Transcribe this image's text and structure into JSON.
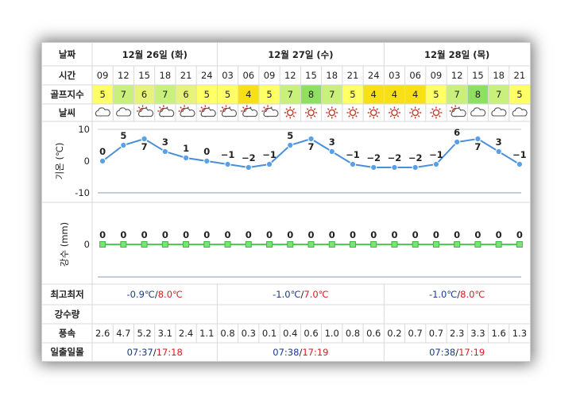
{
  "row_labels": {
    "date": "날짜",
    "time": "시간",
    "golf": "골프지수",
    "weather": "날씨",
    "temp_axis": "기온 (℃)",
    "precip_axis": "강수 (mm)",
    "minmax": "최고최저",
    "precip": "강수량",
    "wind": "풍속",
    "sun": "일출일몰"
  },
  "days": [
    {
      "label": "12월 26일 (화)",
      "min": "-0.9℃",
      "max": "8.0℃",
      "sunrise": "07:37",
      "sunset": "17:18"
    },
    {
      "label": "12월 27일 (수)",
      "min": "-1.0℃",
      "max": "7.0℃",
      "sunrise": "07:38",
      "sunset": "17:19"
    },
    {
      "label": "12월 28일 (목)",
      "min": "-1.0℃",
      "max": "8.0℃",
      "sunrise": "07:38",
      "sunset": "17:19"
    }
  ],
  "day_spans": [
    6,
    8,
    7
  ],
  "colors": {
    "golf_scale": {
      "4": "#f7e017",
      "5": "#ffff66",
      "6": "#e6f27a",
      "7": "#c8f07a",
      "8": "#8fe060"
    },
    "temp_line": "#4a90d9",
    "precip_line": "#4cd04c",
    "min_color": "#1a3a8a",
    "max_color": "#d42020"
  },
  "chart_data": [
    {
      "type": "line",
      "name": "temperature",
      "x": [
        "09",
        "12",
        "15",
        "18",
        "21",
        "24",
        "03",
        "06",
        "09",
        "12",
        "15",
        "18",
        "21",
        "24",
        "03",
        "06",
        "09",
        "12",
        "15",
        "18",
        "21"
      ],
      "values": [
        0,
        5,
        7,
        3,
        1,
        0,
        -1,
        -2,
        -1,
        5,
        7,
        3,
        -1,
        -2,
        -2,
        -2,
        -1,
        6,
        7,
        3,
        -1
      ],
      "ylabel": "기온 (℃)",
      "yticks": [
        10,
        0,
        -10
      ],
      "ylim": [
        -10,
        10
      ],
      "grid": false
    },
    {
      "type": "line",
      "name": "precipitation",
      "x": [
        "09",
        "12",
        "15",
        "18",
        "21",
        "24",
        "03",
        "06",
        "09",
        "12",
        "15",
        "18",
        "21",
        "24",
        "03",
        "06",
        "09",
        "12",
        "15",
        "18",
        "21"
      ],
      "values": [
        0,
        0,
        0,
        0,
        0,
        0,
        0,
        0,
        0,
        0,
        0,
        0,
        0,
        0,
        0,
        0,
        0,
        0,
        0,
        0,
        0
      ],
      "ylabel": "강수 (mm)",
      "yticks": [
        0
      ]
    }
  ],
  "hours": [
    "09",
    "12",
    "15",
    "18",
    "21",
    "24",
    "03",
    "06",
    "09",
    "12",
    "15",
    "18",
    "21",
    "24",
    "03",
    "06",
    "09",
    "12",
    "15",
    "18",
    "21"
  ],
  "golf": [
    "5",
    "7",
    "6",
    "7",
    "6",
    "5",
    "5",
    "4",
    "5",
    "7",
    "8",
    "7",
    "5",
    "4",
    "4",
    "4",
    "5",
    "7",
    "8",
    "7",
    "5"
  ],
  "weather_icons": [
    "cloud-icon",
    "cloud-icon",
    "partly-cloudy-icon",
    "partly-cloudy-icon",
    "partly-cloudy-icon",
    "partly-cloudy-icon",
    "partly-cloudy-icon",
    "partly-cloudy-icon",
    "partly-cloudy-icon",
    "sun-icon",
    "sun-icon",
    "sun-icon",
    "sun-icon",
    "sun-icon",
    "sun-icon",
    "sun-icon",
    "sun-icon",
    "partly-cloudy-icon",
    "cloud-icon",
    "cloud-icon",
    "cloud-icon"
  ],
  "wind": [
    "2.6",
    "4.7",
    "5.2",
    "3.1",
    "2.4",
    "1.1",
    "0.8",
    "0.3",
    "0.1",
    "0.4",
    "0.6",
    "1.0",
    "0.8",
    "0.6",
    "0.2",
    "0.7",
    "0.7",
    "2.3",
    "3.3",
    "1.6",
    "1.3"
  ]
}
